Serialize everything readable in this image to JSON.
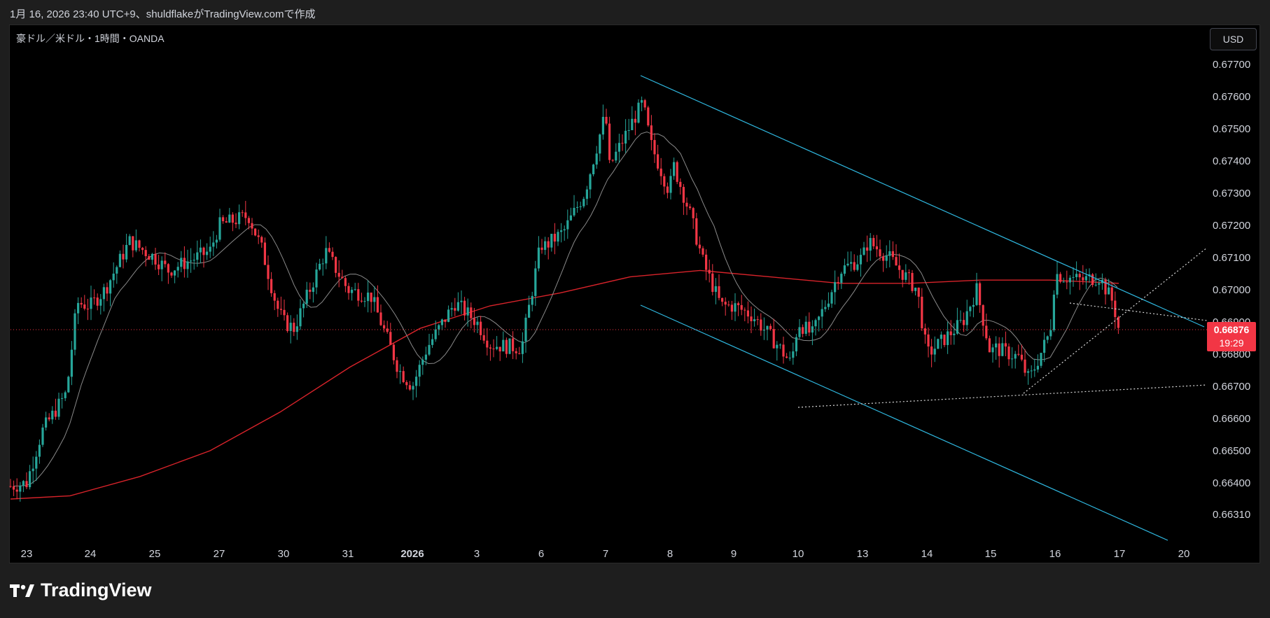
{
  "header": {
    "text": "1月 16, 2026 23:40 UTC+9、shuldflakeがTradingView.comで作成"
  },
  "symbol": {
    "label": "豪ドル／米ドル・1時間・OANDA"
  },
  "currency_button": {
    "label": "USD"
  },
  "brand": {
    "name": "TradingView"
  },
  "last_price": {
    "value": "0.66876",
    "countdown": "19:29"
  },
  "colors": {
    "up": "#26a69a",
    "down": "#f23645",
    "ma_long": "#d8232a",
    "ma_short": "#8a8a8a",
    "channel": "#2fb8e0",
    "dotted": "#d9d9d9",
    "price_line": "#f23645"
  },
  "chart_data": {
    "type": "candlestick",
    "title": "",
    "timeframe": "1時間",
    "price_axis": {
      "labels": [
        "0.67700",
        "0.67600",
        "0.67500",
        "0.67400",
        "0.67300",
        "0.67200",
        "0.67100",
        "0.67000",
        "0.66900",
        "0.66800",
        "0.66700",
        "0.66600",
        "0.66500",
        "0.66400",
        "0.66310"
      ],
      "range": [
        0.6625,
        0.6778
      ]
    },
    "time_axis": {
      "labels": [
        "23",
        "24",
        "25",
        "27",
        "30",
        "31",
        "2026",
        "3",
        "6",
        "7",
        "8",
        "9",
        "10",
        "13",
        "14",
        "15",
        "16",
        "17",
        "20"
      ]
    },
    "key_closes": [
      {
        "session": "23",
        "close": 0.664
      },
      {
        "session": "24",
        "close": 0.6695
      },
      {
        "session": "25",
        "close": 0.671
      },
      {
        "session": "27",
        "close": 0.672
      },
      {
        "session": "30",
        "close": 0.669
      },
      {
        "session": "31",
        "close": 0.67
      },
      {
        "session": "2026",
        "close": 0.667
      },
      {
        "session": "3",
        "close": 0.669
      },
      {
        "session": "6",
        "close": 0.6715
      },
      {
        "session": "7",
        "close": 0.6755
      },
      {
        "session": "8",
        "close": 0.673
      },
      {
        "session": "9",
        "close": 0.6695
      },
      {
        "session": "10",
        "close": 0.669
      },
      {
        "session": "13",
        "close": 0.671
      },
      {
        "session": "14",
        "close": 0.668
      },
      {
        "session": "15",
        "close": 0.668
      },
      {
        "session": "16",
        "close": 0.6705
      },
      {
        "session": "17",
        "close": 0.66876
      }
    ],
    "high": 0.6762,
    "low": 0.6628,
    "last": 0.66876,
    "indicators": [
      "moving average (long, red)",
      "moving average (short, gray)"
    ],
    "drawings": [
      "descending channel (cyan)",
      "dotted trendlines (white)"
    ],
    "grid": false
  }
}
